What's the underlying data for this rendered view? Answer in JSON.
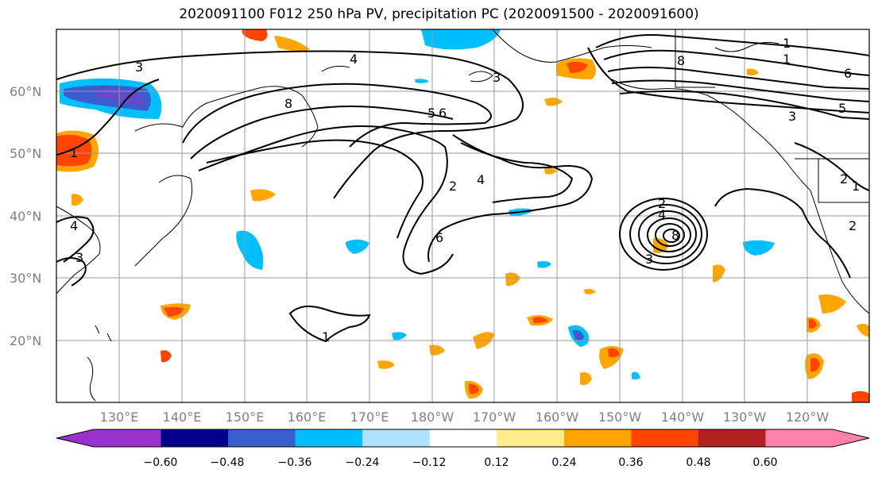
{
  "title": "2020091100 F012 250 hPa PV, precipitation PC (2020091500 - 2020091600)",
  "latitude_labels": [
    "60°N",
    "50°N",
    "40°N",
    "30°N",
    "20°N"
  ],
  "longitude_labels": [
    "130°E",
    "140°E",
    "150°E",
    "160°E",
    "170°E",
    "180°W",
    "170°W",
    "160°W",
    "150°W",
    "140°W",
    "130°W",
    "120°W"
  ],
  "colorbar": {
    "colors": [
      "#9932cc",
      "#00008b",
      "#3a5fcd",
      "#00bfff",
      "#b0e2ff",
      "#ffffff",
      "#ffec8b",
      "#ffa500",
      "#ff4500",
      "#b22222",
      "#ff82ab"
    ],
    "tick_labels": [
      "−0.60",
      "−0.48",
      "−0.36",
      "−0.24",
      "−0.12",
      "0.12",
      "0.24",
      "0.36",
      "0.48",
      "0.60"
    ]
  },
  "pv_contour_labels": [
    "4",
    "3",
    "8",
    "5",
    "6",
    "1",
    "2",
    "4",
    "6",
    "3",
    "1",
    "8",
    "6",
    "5",
    "3",
    "2",
    "2",
    "1",
    "1",
    "4",
    "3",
    "2",
    "4",
    "8",
    "3",
    "1"
  ]
}
